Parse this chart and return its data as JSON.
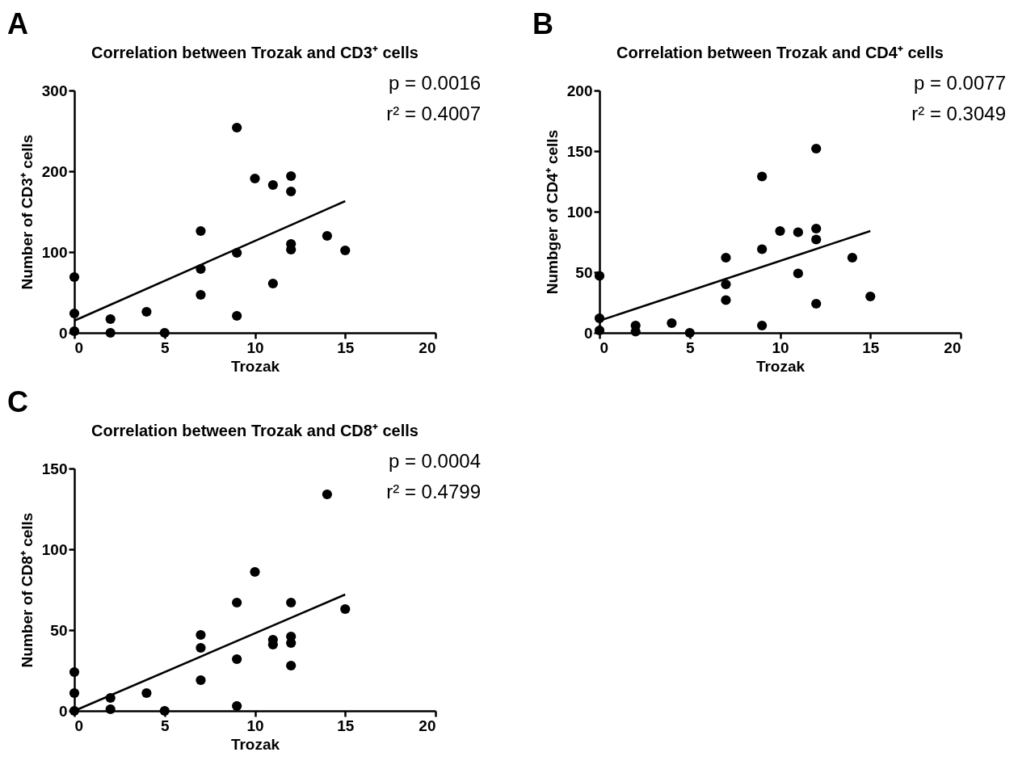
{
  "chart_data": [
    {
      "type": "scatter",
      "title": "Correlation between Trozak and  CD3⁺ cells",
      "xlabel": "Trozak",
      "ylabel": "Number of CD3⁺ cells",
      "annotations": [
        "A",
        "p  = 0.0016",
        "r² = 0.4007"
      ],
      "xlim": [
        0,
        20
      ],
      "xticks": [
        0,
        5,
        10,
        15,
        20
      ],
      "ylim": [
        0,
        300
      ],
      "yticks": [
        0,
        100,
        200,
        300
      ],
      "grid": false,
      "marker": "circle",
      "series": [
        {
          "color": "#000000",
          "x": [
            0,
            0,
            0,
            2,
            2,
            4,
            5,
            7,
            7,
            7,
            9,
            9,
            9,
            10,
            11,
            11,
            12,
            12,
            12,
            12,
            14,
            15
          ],
          "values": [
            69,
            24,
            2,
            17,
            0,
            26,
            0,
            126,
            79,
            47,
            254,
            99,
            21,
            191,
            183,
            61,
            194,
            175,
            110,
            103,
            120,
            102
          ]
        },
        {
          "type": "line",
          "color": "#000000",
          "marker": "none",
          "x": [
            0,
            15
          ],
          "values": [
            15,
            163
          ]
        }
      ]
    },
    {
      "type": "scatter",
      "title": "Correlation between Trozak and  CD4⁺ cells",
      "xlabel": "Trozak",
      "ylabel": "Numbger of CD4⁺ cells",
      "annotations": [
        "B",
        "p  = 0.0077",
        "r² = 0.3049"
      ],
      "xlim": [
        0,
        20
      ],
      "xticks": [
        0,
        5,
        10,
        15,
        20
      ],
      "ylim": [
        0,
        200
      ],
      "yticks": [
        0,
        50,
        100,
        150,
        200
      ],
      "grid": false,
      "marker": "circle",
      "series": [
        {
          "color": "#000000",
          "x": [
            0,
            0,
            0,
            2,
            2,
            4,
            5,
            7,
            7,
            7,
            9,
            9,
            9,
            10,
            11,
            11,
            12,
            12,
            12,
            12,
            14,
            15
          ],
          "values": [
            47,
            12,
            2,
            6,
            1,
            8,
            0,
            62,
            40,
            27,
            129,
            69,
            6,
            84,
            83,
            49,
            152,
            86,
            77,
            24,
            62,
            30
          ]
        },
        {
          "type": "line",
          "color": "#000000",
          "marker": "none",
          "x": [
            0,
            15
          ],
          "values": [
            10,
            84
          ]
        }
      ]
    },
    {
      "type": "scatter",
      "title": "Correlation between Trozak and CD8⁺ cells",
      "xlabel": "Trozak",
      "ylabel": "Number of CD8⁺ cells",
      "annotations": [
        "C",
        "p  = 0.0004",
        "r² = 0.4799"
      ],
      "xlim": [
        0,
        20
      ],
      "xticks": [
        0,
        5,
        10,
        15,
        20
      ],
      "ylim": [
        0,
        150
      ],
      "yticks": [
        0,
        50,
        100,
        150
      ],
      "grid": false,
      "marker": "circle",
      "series": [
        {
          "color": "#000000",
          "x": [
            0,
            0,
            0,
            2,
            2,
            4,
            5,
            7,
            7,
            7,
            9,
            9,
            9,
            10,
            11,
            11,
            12,
            12,
            12,
            12,
            14,
            15
          ],
          "values": [
            24,
            11,
            0,
            8,
            1,
            11,
            0,
            47,
            39,
            19,
            67,
            32,
            3,
            86,
            44,
            41,
            67,
            46,
            42,
            28,
            134,
            63
          ]
        },
        {
          "type": "line",
          "color": "#000000",
          "marker": "none",
          "x": [
            0,
            15
          ],
          "values": [
            0,
            72
          ]
        }
      ]
    }
  ]
}
